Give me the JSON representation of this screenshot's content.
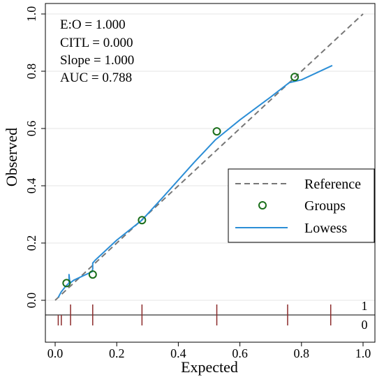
{
  "chart_data": {
    "type": "line",
    "xlabel": "Expected",
    "ylabel": "Observed",
    "xlim": [
      0,
      1
    ],
    "ylim": [
      0,
      1
    ],
    "x_ticks": [
      "0.0",
      "0.2",
      "0.4",
      "0.6",
      "0.8",
      "1.0"
    ],
    "y_ticks": [
      "0.0",
      "0.2",
      "0.4",
      "0.6",
      "0.8",
      "1.0"
    ],
    "grid": "horizontal",
    "stats": [
      "E:O = 1.000",
      "CITL = 0.000",
      "Slope = 1.000",
      "AUC = 0.788"
    ],
    "legend_placement": "right",
    "series": [
      {
        "name": "Reference",
        "kind": "dashed-line",
        "color": "#777777",
        "x": [
          0,
          1
        ],
        "y": [
          0,
          1
        ]
      },
      {
        "name": "Groups",
        "kind": "markers",
        "color": "#1a6e1a",
        "x": [
          0.037,
          0.122,
          0.282,
          0.525,
          0.778
        ],
        "y": [
          0.06,
          0.09,
          0.28,
          0.59,
          0.78
        ]
      },
      {
        "name": "Lowess",
        "kind": "line",
        "color": "#2c8ed6",
        "x": [
          0.01,
          0.02,
          0.035,
          0.045,
          0.045,
          0.048,
          0.06,
          0.08,
          0.12,
          0.122,
          0.122,
          0.13,
          0.2,
          0.282,
          0.35,
          0.45,
          0.52,
          0.6,
          0.7,
          0.76,
          0.8,
          0.9
        ],
        "y": [
          0.01,
          0.03,
          0.05,
          0.06,
          0.09,
          0.06,
          0.07,
          0.08,
          0.1,
          0.11,
          0.13,
          0.14,
          0.21,
          0.28,
          0.36,
          0.48,
          0.56,
          0.63,
          0.71,
          0.76,
          0.77,
          0.82
        ]
      }
    ],
    "rug": {
      "labels": [
        "1",
        "0"
      ],
      "color": "#8b2a2a",
      "event_ticks": [
        0.05,
        0.122,
        0.282,
        0.525,
        0.755,
        0.895
      ],
      "nonevent_ticks": [
        0.01,
        0.02,
        0.05,
        0.122,
        0.282,
        0.525,
        0.755,
        0.895
      ]
    }
  }
}
